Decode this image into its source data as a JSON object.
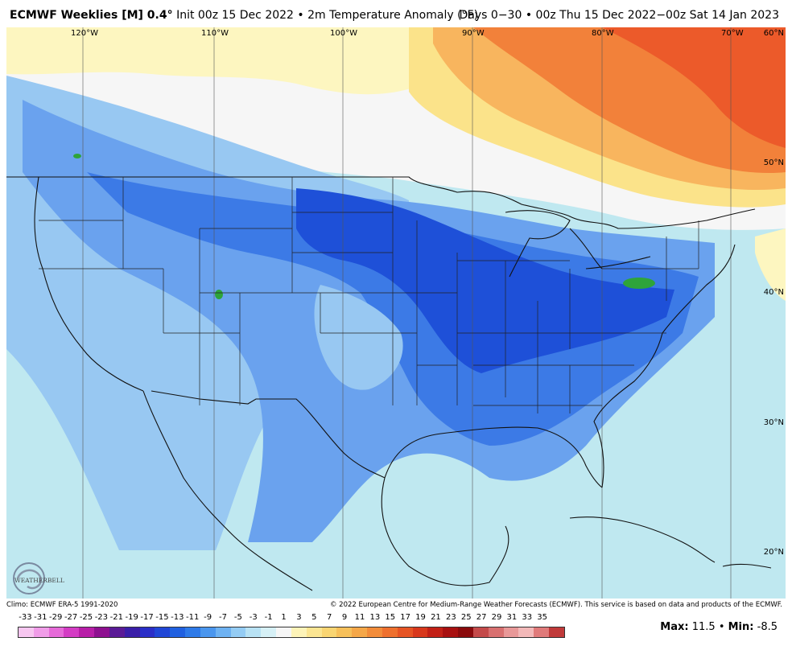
{
  "header": {
    "model": "ECMWF Weeklies [M] 0.4",
    "model_deg": "°",
    "run_info": "Init 00z 15 Dec 2022 • 2m Temperature Anomaly (°F)",
    "valid_info": "Days 0−30 • 00z Thu 15 Dec 2022−00z Sat 14 Jan 2023"
  },
  "map": {
    "lat_labels": [
      "60°N",
      "50°N",
      "40°N",
      "30°N",
      "20°N"
    ],
    "lon_labels": [
      "120°W",
      "110°W",
      "100°W",
      "90°W",
      "80°W",
      "70°W"
    ],
    "colors": {
      "deep_blue": "#1e50d8",
      "blue": "#3c7ae6",
      "mid_blue": "#6aa2ee",
      "light_blue": "#98c8f2",
      "cyan": "#bfe8f0",
      "white": "#f8f8f8",
      "pale_yellow": "#fdf6c0",
      "yellow": "#fbe38a",
      "orange": "#f8b55e",
      "dark_orange": "#f2813a",
      "red_orange": "#ec5a2a",
      "green": "#2ea43a"
    }
  },
  "logo": {
    "text": "WEATHERBELL",
    "icon": "swirl-logo-icon"
  },
  "footer": {
    "climo": "Climo: ECMWF ERA-5 1991-2020",
    "copyright": "© 2022 European Centre for Medium-Range Weather Forecasts (ECMWF). This service is based on data and products of the ECMWF."
  },
  "colorbar": {
    "labels": [
      "-33",
      "-31",
      "-29",
      "-27",
      "-25",
      "-23",
      "-21",
      "-19",
      "-17",
      "-15",
      "-13",
      "-11",
      "-9",
      "-7",
      "-5",
      "-3",
      "-1",
      "1",
      "3",
      "5",
      "7",
      "9",
      "11",
      "13",
      "15",
      "17",
      "19",
      "21",
      "23",
      "25",
      "27",
      "29",
      "31",
      "33",
      "35"
    ],
    "colors": [
      "#f7c6f0",
      "#f09ce8",
      "#e66ad8",
      "#d43cc4",
      "#b81ea8",
      "#8e1090",
      "#5a1a96",
      "#3a1ea8",
      "#2a2ec8",
      "#2046d6",
      "#2060e0",
      "#2e7ae8",
      "#4a96ee",
      "#6eb2f2",
      "#94ccf4",
      "#b8e2f4",
      "#d6f0f6",
      "#f6f6f6",
      "#fdf3b8",
      "#fbe592",
      "#f9d572",
      "#f7c05a",
      "#f5a748",
      "#f28c3a",
      "#ee702e",
      "#e65424",
      "#d8381c",
      "#c22016",
      "#a81010",
      "#8a0a0c",
      "#c44a4a",
      "#d87070",
      "#e89898",
      "#f2b8b8",
      "#e07a7a",
      "#c03a3a"
    ]
  },
  "stats": {
    "max_label": "Max:",
    "max_value": "11.5",
    "sep": "•",
    "min_label": "Min:",
    "min_value": "-8.5"
  }
}
